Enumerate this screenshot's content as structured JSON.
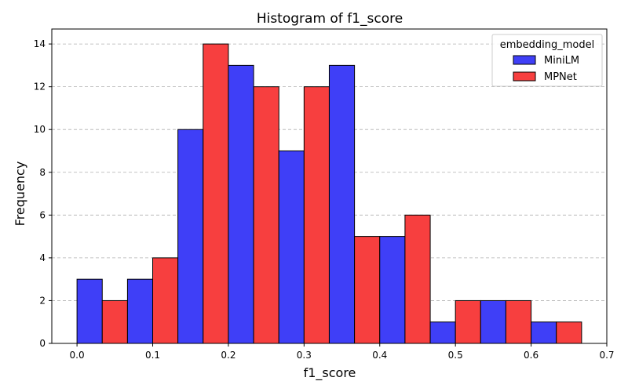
{
  "chart_data": {
    "type": "bar",
    "title": "Histogram of f1_score",
    "xlabel": "f1_score",
    "ylabel": "Frequency",
    "xlim": [
      -0.0333,
      0.7
    ],
    "ylim": [
      0,
      14.7
    ],
    "grid": "y-dashed",
    "legend": {
      "title": "embedding_model",
      "placement": "top-right"
    },
    "x_ticks": [
      0.0,
      0.1,
      0.2,
      0.3,
      0.4,
      0.5,
      0.6,
      0.7
    ],
    "x_tick_labels": [
      "0.0",
      "0.1",
      "0.2",
      "0.3",
      "0.4",
      "0.5",
      "0.6",
      "0.7"
    ],
    "y_ticks": [
      0,
      2,
      4,
      6,
      8,
      10,
      12,
      14
    ],
    "y_tick_labels": [
      "0",
      "2",
      "4",
      "6",
      "8",
      "10",
      "12",
      "14"
    ],
    "bin_edges": [
      0.0,
      0.0667,
      0.1333,
      0.2,
      0.2667,
      0.3333,
      0.4,
      0.4667,
      0.5333,
      0.6,
      0.6667
    ],
    "series": [
      {
        "name": "MiniLM",
        "color": "#3f3ff7",
        "values": [
          3,
          3,
          10,
          13,
          9,
          13,
          5,
          1,
          2,
          1
        ]
      },
      {
        "name": "MPNet",
        "color": "#f73f3f",
        "values": [
          2,
          4,
          14,
          12,
          12,
          5,
          6,
          2,
          2,
          1
        ]
      }
    ]
  }
}
